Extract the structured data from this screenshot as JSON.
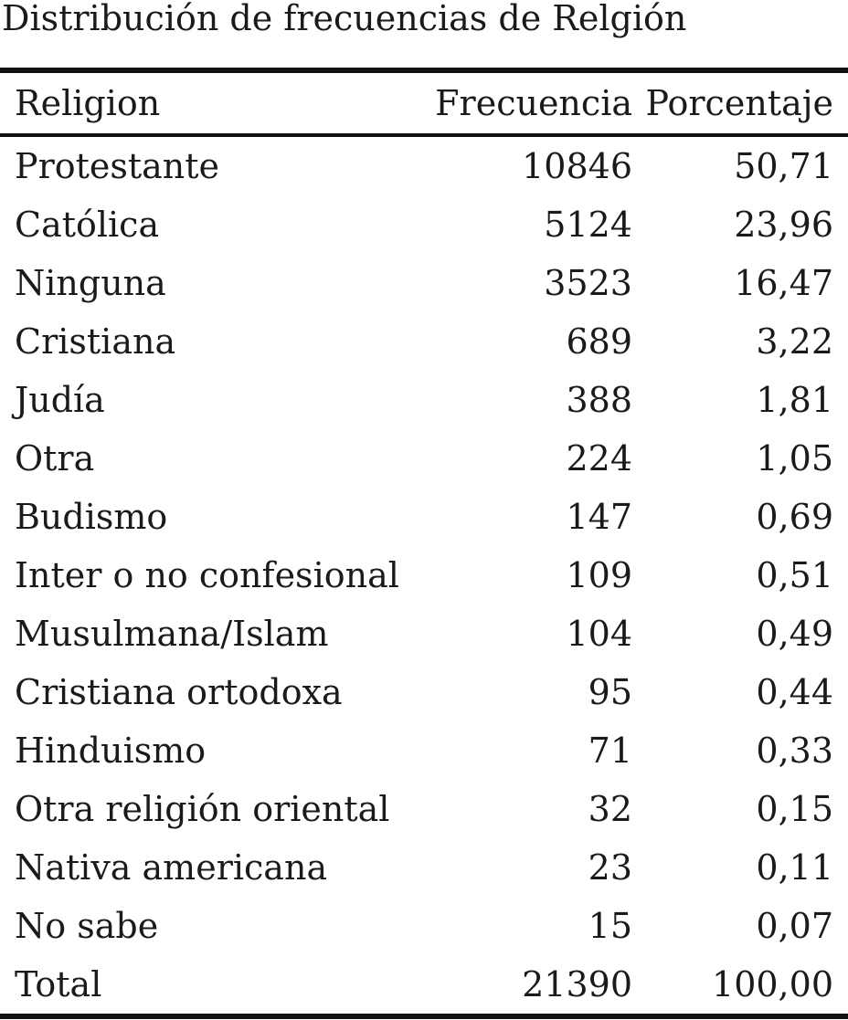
{
  "title": "Distribución de frecuencias de Relgión",
  "headers": {
    "religion": "Religion",
    "frequency": "Frecuencia",
    "percent": "Porcentaje"
  },
  "rows": [
    {
      "religion": "Protestante",
      "frequency": "10846",
      "percent": "50,71"
    },
    {
      "religion": "Católica",
      "frequency": "5124",
      "percent": "23,96"
    },
    {
      "religion": "Ninguna",
      "frequency": "3523",
      "percent": "16,47"
    },
    {
      "religion": "Cristiana",
      "frequency": "689",
      "percent": "3,22"
    },
    {
      "religion": "Judía",
      "frequency": "388",
      "percent": "1,81"
    },
    {
      "religion": "Otra",
      "frequency": "224",
      "percent": "1,05"
    },
    {
      "religion": "Budismo",
      "frequency": "147",
      "percent": "0,69"
    },
    {
      "religion": "Inter o no confesional",
      "frequency": "109",
      "percent": "0,51"
    },
    {
      "religion": "Musulmana/Islam",
      "frequency": "104",
      "percent": "0,49"
    },
    {
      "religion": "Cristiana ortodoxa",
      "frequency": "95",
      "percent": "0,44"
    },
    {
      "religion": "Hinduismo",
      "frequency": "71",
      "percent": "0,33"
    },
    {
      "religion": "Otra religión oriental",
      "frequency": "32",
      "percent": "0,15"
    },
    {
      "religion": "Nativa americana",
      "frequency": "23",
      "percent": "0,11"
    },
    {
      "religion": "No sabe",
      "frequency": "15",
      "percent": "0,07"
    },
    {
      "religion": "Total",
      "frequency": "21390",
      "percent": "100,00"
    }
  ]
}
